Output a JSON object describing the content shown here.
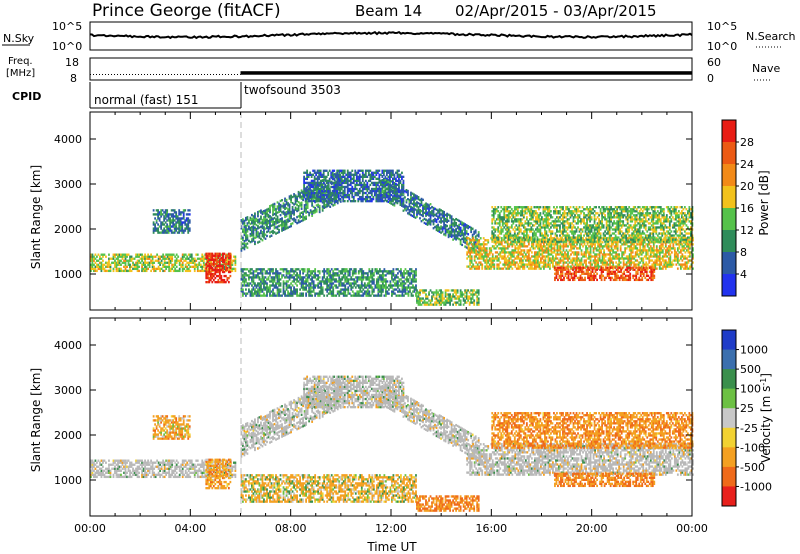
{
  "header": {
    "station": "Prince George (fitACF)",
    "beam": "Beam 14",
    "date_range": "02/Apr/2015 - 03/Apr/2015"
  },
  "nsky": {
    "label": "N.Sky",
    "tick_top": "10^5",
    "tick_bottom": "10^0",
    "right_tick_top": "10^5",
    "right_tick_bottom": "10^0",
    "right_label": "N.Search"
  },
  "freq": {
    "label_line1": "Freq.",
    "label_line2": "[MHz]",
    "tick_top": "18",
    "tick_bottom": "8",
    "right_tick_top": "60",
    "right_tick_bottom": "0",
    "right_label": "Nave",
    "value_before": 10.5,
    "value_after": 11.2,
    "nave_before": 22,
    "nave_after": 24
  },
  "cpid": {
    "label": "CPID",
    "modes": [
      {
        "name": "normal (fast) 151",
        "start_hour": 0,
        "end_hour": 6
      },
      {
        "name": "twofsound 3503",
        "start_hour": 6,
        "end_hour": 24
      }
    ]
  },
  "chart_data": [
    {
      "type": "heatmap",
      "name": "power-panel",
      "ylabel": "Slant Range [km]",
      "xlabel": "",
      "xlim": [
        0,
        24
      ],
      "ylim": [
        200,
        4600
      ],
      "yticks": [
        1000,
        2000,
        3000,
        4000
      ],
      "colorbar_label": "Power [dB]",
      "colorbar_ticks": [
        "4",
        "8",
        "12",
        "16",
        "20",
        "24",
        "28"
      ],
      "colorbar_colors": [
        "#2233ee",
        "#2c5aa6",
        "#2f8c5a",
        "#55c24a",
        "#f2c21c",
        "#f28a18",
        "#ec5a14",
        "#e81c14"
      ],
      "color_bounds": [
        0,
        4,
        8,
        12,
        16,
        20,
        24,
        28,
        32
      ],
      "mode_change_hour": 6
    },
    {
      "type": "heatmap",
      "name": "velocity-panel",
      "ylabel": "Slant Range [km]",
      "xlabel": "Time UT",
      "xlim": [
        0,
        24
      ],
      "ylim": [
        200,
        4600
      ],
      "yticks": [
        1000,
        2000,
        3000,
        4000
      ],
      "xtick_labels": [
        "00:00",
        "04:00",
        "08:00",
        "12:00",
        "16:00",
        "20:00",
        "00:00"
      ],
      "colorbar_label": "Velocity [m s^-1]",
      "colorbar_ticks": [
        "1000",
        "500",
        "100",
        "25",
        "-25",
        "-100",
        "-500",
        "-1000"
      ],
      "colorbar_colors": [
        "#1f3cc8",
        "#3b6fae",
        "#3a8f4c",
        "#6cc043",
        "#c8c8c8",
        "#f2d232",
        "#f4a021",
        "#ef6a1a",
        "#e8201c"
      ],
      "ground_scatter_color": "#b8b8b8",
      "mode_change_hour": 6
    }
  ],
  "echo_bands": [
    {
      "id": "low-band",
      "t0": 0,
      "t1": 5.8,
      "r0": 1050,
      "r1": 1450,
      "power": 16,
      "velocity": 0,
      "gs": true
    },
    {
      "id": "low-band-hot",
      "t0": 4.6,
      "t1": 5.6,
      "r0": 800,
      "r1": 1450,
      "power": 30,
      "velocity": -200,
      "gs": false
    },
    {
      "id": "upper-early",
      "t0": 2.5,
      "t1": 4.0,
      "r0": 1900,
      "r1": 2400,
      "power": 8,
      "velocity": -150,
      "gs": false
    },
    {
      "id": "arc-rise",
      "t0": 6.0,
      "t1": 10.0,
      "r0": 1600,
      "r1": 3200,
      "power": 10,
      "velocity": 0,
      "gs": true
    },
    {
      "id": "arc-top",
      "t0": 8.5,
      "t1": 12.5,
      "r0": 2600,
      "r1": 3300,
      "power": 7,
      "velocity": 0,
      "gs": true
    },
    {
      "id": "arc-fall",
      "t0": 11.5,
      "t1": 15.5,
      "r0": 1400,
      "r1": 2900,
      "power": 8,
      "velocity": 0,
      "gs": true
    },
    {
      "id": "mid-band",
      "t0": 6.0,
      "t1": 13.0,
      "r0": 500,
      "r1": 1100,
      "power": 10,
      "velocity": -80,
      "gs": false
    },
    {
      "id": "late-band",
      "t0": 15.0,
      "t1": 24.0,
      "r0": 1100,
      "r1": 1800,
      "power": 18,
      "velocity": -50,
      "gs": true
    },
    {
      "id": "late-hot",
      "t0": 18.5,
      "t1": 22.5,
      "r0": 850,
      "r1": 1150,
      "power": 27,
      "velocity": -300,
      "gs": false
    },
    {
      "id": "late-upper",
      "t0": 16.0,
      "t1": 24.0,
      "r0": 1700,
      "r1": 2500,
      "power": 14,
      "velocity": -250,
      "gs": false
    },
    {
      "id": "near-range",
      "t0": 13.0,
      "t1": 15.5,
      "r0": 300,
      "r1": 650,
      "power": 14,
      "velocity": -300,
      "gs": false
    }
  ]
}
